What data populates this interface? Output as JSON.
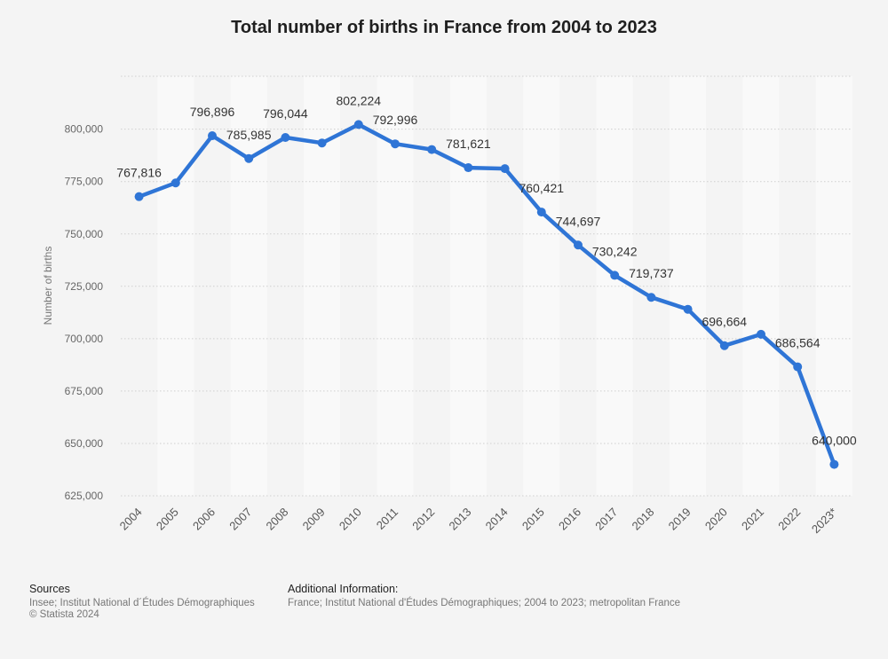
{
  "title": "Total number of births in France from 2004 to 2023",
  "footer": {
    "sources_heading": "Sources",
    "sources_text": "Insee; Institut National d´Études Démographiques",
    "copyright": "© Statista 2024",
    "additional_heading": "Additional Information:",
    "additional_text": "France; Institut National d'Études Démographiques; 2004 to 2023; metropolitan France"
  },
  "chart_data": {
    "type": "line",
    "title": "Total number of births in France from 2004 to 2023",
    "xlabel": "",
    "ylabel": "Number of births",
    "ylim": [
      625000,
      825000
    ],
    "yticks": [
      625000,
      650000,
      675000,
      700000,
      725000,
      750000,
      775000,
      800000
    ],
    "ytick_labels": [
      "625,000",
      "650,000",
      "675,000",
      "700,000",
      "725,000",
      "750,000",
      "775,000",
      "800,000"
    ],
    "grid": true,
    "line_color": "#2f75d6",
    "categories": [
      "2004",
      "2005",
      "2006",
      "2007",
      "2008",
      "2009",
      "2010",
      "2011",
      "2012",
      "2013",
      "2014",
      "2015",
      "2016",
      "2017",
      "2018",
      "2019",
      "2020",
      "2021",
      "2022",
      "2023*"
    ],
    "values": [
      767816,
      774355,
      796896,
      785985,
      796044,
      793420,
      802224,
      792996,
      790290,
      781621,
      781167,
      760421,
      744697,
      730242,
      719737,
      714029,
      696664,
      702100,
      686564,
      640000
    ],
    "data_labels": [
      {
        "index": 0,
        "text": "767,816"
      },
      {
        "index": 2,
        "text": "796,896"
      },
      {
        "index": 3,
        "text": "785,985"
      },
      {
        "index": 4,
        "text": "796,044"
      },
      {
        "index": 6,
        "text": "802,224"
      },
      {
        "index": 7,
        "text": "792,996"
      },
      {
        "index": 9,
        "text": "781,621"
      },
      {
        "index": 11,
        "text": "760,421"
      },
      {
        "index": 12,
        "text": "744,697"
      },
      {
        "index": 13,
        "text": "730,242"
      },
      {
        "index": 14,
        "text": "719,737"
      },
      {
        "index": 16,
        "text": "696,664"
      },
      {
        "index": 18,
        "text": "686,564"
      },
      {
        "index": 19,
        "text": "640,000"
      }
    ]
  }
}
